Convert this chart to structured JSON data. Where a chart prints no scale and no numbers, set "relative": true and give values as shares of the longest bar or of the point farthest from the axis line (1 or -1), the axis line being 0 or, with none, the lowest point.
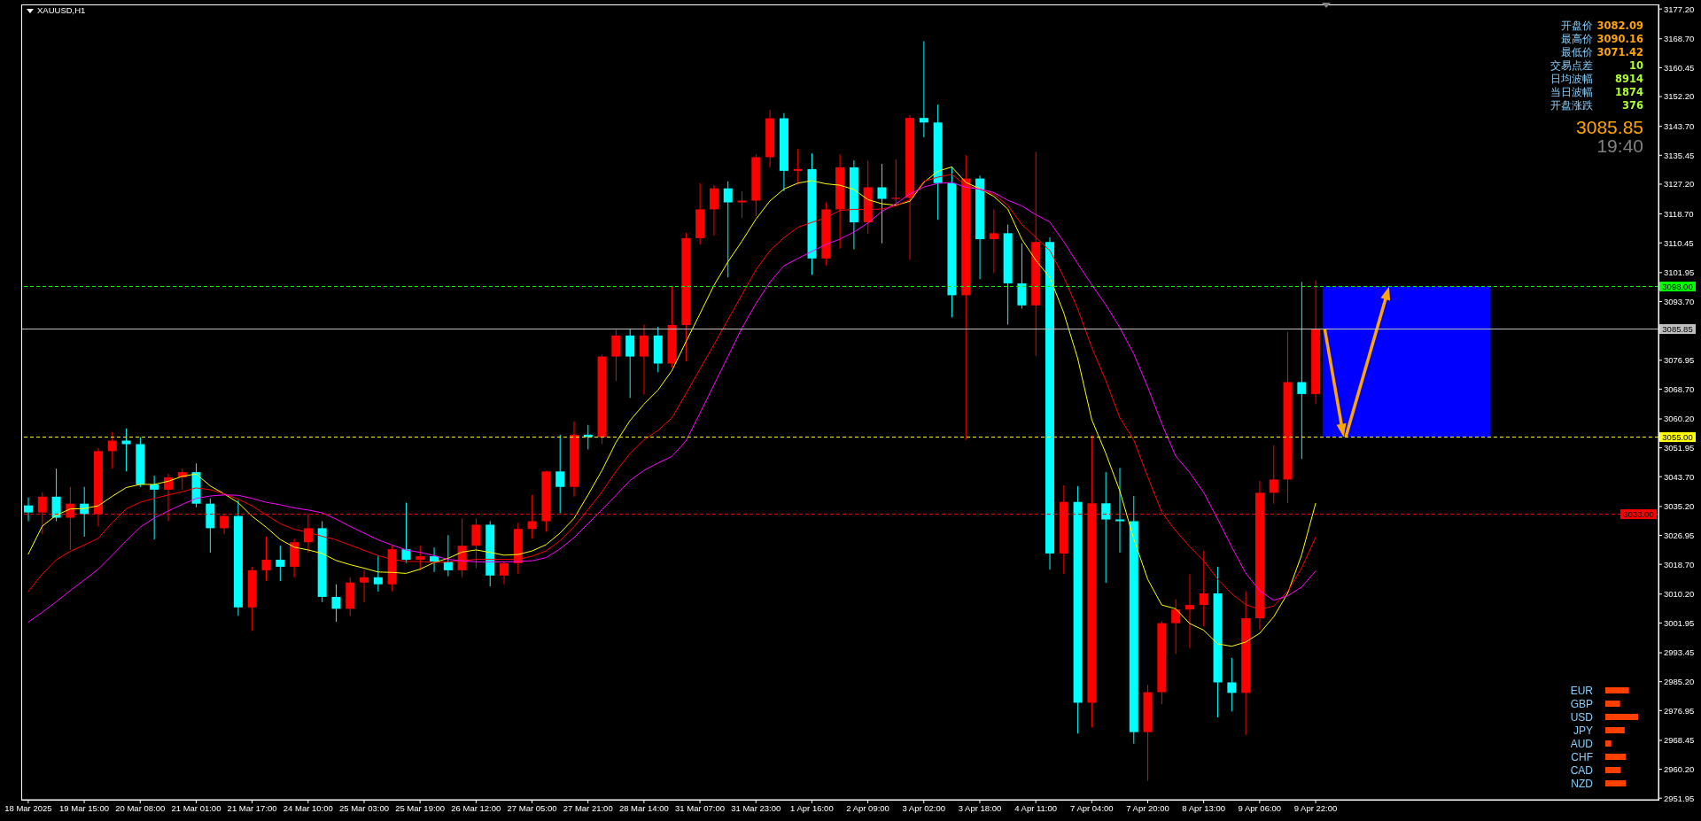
{
  "chart_data": [
    {
      "type": "candlestick",
      "title": "XAUUSD,H1",
      "categories": [
        "18 Mar 2025",
        null,
        null,
        null,
        "19 Mar 15:00",
        null,
        null,
        null,
        "20 Mar 08:00",
        null,
        null,
        null,
        "21 Mar 01:00",
        null,
        null,
        null,
        "21 Mar 17:00",
        null,
        null,
        null,
        "24 Mar 10:00",
        null,
        null,
        null,
        "25 Mar 03:00",
        null,
        null,
        null,
        "25 Mar 19:00",
        null,
        null,
        null,
        "26 Mar 12:00",
        null,
        null,
        null,
        "27 Mar 05:00",
        null,
        null,
        null,
        "27 Mar 21:00",
        null,
        null,
        null,
        "28 Mar 14:00",
        null,
        null,
        null,
        "31 Mar 07:00",
        null,
        null,
        null,
        "31 Mar 23:00",
        null,
        null,
        null,
        "1 Apr 16:00",
        null,
        null,
        null,
        "2 Apr 09:00",
        null,
        null,
        null,
        "3 Apr 02:00",
        null,
        null,
        null,
        "3 Apr 18:00",
        null,
        null,
        null,
        "4 Apr 11:00",
        null,
        null,
        null,
        "7 Apr 04:00",
        null,
        null,
        null,
        "7 Apr 20:00",
        null,
        null,
        null,
        "8 Apr 13:00",
        null,
        null,
        null,
        "9 Apr 06:00",
        null,
        null,
        null,
        "9 Apr 22:00",
        null,
        null,
        null,
        null,
        null,
        null,
        null,
        null,
        null,
        null,
        null,
        null,
        null,
        null,
        null,
        null,
        null,
        null,
        null,
        null,
        null,
        null,
        null,
        null
      ],
      "ohlc": [
        [
          3035.5,
          3037.8,
          3031,
          3033.5
        ],
        [
          3033.5,
          3039.3,
          3027.3,
          3038
        ],
        [
          3038,
          3046,
          3031,
          3032
        ],
        [
          3032,
          3040.8,
          3022.8,
          3036
        ],
        [
          3036,
          3040.8,
          3026.6,
          3033
        ],
        [
          3033,
          3051.9,
          3029.5,
          3051
        ],
        [
          3051,
          3056.5,
          3046,
          3054
        ],
        [
          3054,
          3057.5,
          3045.2,
          3053
        ],
        [
          3053,
          3055,
          3040.8,
          3041.5
        ],
        [
          3041.5,
          3044,
          3025.8,
          3040
        ],
        [
          3040,
          3044.5,
          3031,
          3043.5
        ],
        [
          3043.5,
          3046,
          3040,
          3045
        ],
        [
          3045,
          3047.5,
          3035,
          3036
        ],
        [
          3036,
          3037.5,
          3022,
          3029
        ],
        [
          3029,
          3033,
          3027.3,
          3032.5
        ],
        [
          3032.5,
          3037,
          3004,
          3006.4
        ],
        [
          3006.4,
          3018,
          2999.7,
          3017
        ],
        [
          3017,
          3026.6,
          3014,
          3020
        ],
        [
          3020,
          3024,
          3013.9,
          3018
        ],
        [
          3018,
          3026,
          3015,
          3025
        ],
        [
          3025,
          3033.3,
          3022,
          3029
        ],
        [
          3029,
          3031,
          3007.9,
          3009.4
        ],
        [
          3009.4,
          3013,
          3002.3,
          3006
        ],
        [
          3006,
          3015,
          3004,
          3013.5
        ],
        [
          3013.5,
          3017,
          3007.9,
          3015
        ],
        [
          3015,
          3021.3,
          3010.9,
          3013
        ],
        [
          3013,
          3024,
          3011,
          3023
        ],
        [
          3023,
          3036.3,
          3019.1,
          3020
        ],
        [
          3020,
          3024,
          3017,
          3021
        ],
        [
          3021,
          3023.5,
          3016.5,
          3019.5
        ],
        [
          3019.5,
          3027,
          3015.3,
          3017
        ],
        [
          3017,
          3031.8,
          3015,
          3024
        ],
        [
          3024,
          3031.8,
          3017.6,
          3030
        ],
        [
          3030,
          3031,
          3012.4,
          3015.5
        ],
        [
          3015.5,
          3019.5,
          3013,
          3019
        ],
        [
          3019,
          3030.5,
          3016,
          3028.8
        ],
        [
          3028.8,
          3038.5,
          3026,
          3031
        ],
        [
          3031,
          3045.4,
          3028,
          3045.2
        ],
        [
          3045.2,
          3055.7,
          3033.3,
          3040.8
        ],
        [
          3040.8,
          3059.5,
          3038,
          3055.7
        ],
        [
          3055.7,
          3058.5,
          3051.5,
          3055
        ],
        [
          3055,
          3078.5,
          3053,
          3078
        ],
        [
          3078,
          3085.6,
          3071,
          3084
        ],
        [
          3084,
          3086,
          3066.2,
          3078
        ],
        [
          3078,
          3087.1,
          3067.2,
          3084
        ],
        [
          3084,
          3086.5,
          3073.5,
          3076
        ],
        [
          3076,
          3098,
          3074.8,
          3087
        ],
        [
          3087,
          3113.3,
          3076.6,
          3111.8
        ],
        [
          3111.8,
          3127.5,
          3110,
          3120
        ],
        [
          3120,
          3127,
          3112.5,
          3126
        ],
        [
          3126,
          3128,
          3100.6,
          3122
        ],
        [
          3122,
          3125.2,
          3117.5,
          3122.5
        ],
        [
          3122.5,
          3135.7,
          3118,
          3134.9
        ],
        [
          3134.9,
          3148.4,
          3132,
          3146
        ],
        [
          3146,
          3147.5,
          3125.2,
          3131
        ],
        [
          3131,
          3137.2,
          3127,
          3131.5
        ],
        [
          3131.5,
          3136,
          3101.3,
          3106
        ],
        [
          3106,
          3122,
          3104,
          3120
        ],
        [
          3120,
          3135.7,
          3108.8,
          3132
        ],
        [
          3132,
          3134,
          3108.6,
          3116.3
        ],
        [
          3116.3,
          3133.9,
          3113,
          3126.3
        ],
        [
          3126.3,
          3133,
          3110.3,
          3123
        ],
        [
          3123,
          3134.3,
          3121.6,
          3123.3
        ],
        [
          3123.3,
          3147,
          3105.6,
          3146.1
        ],
        [
          3146.1,
          3168,
          3140.6,
          3144.8
        ],
        [
          3144.8,
          3149.9,
          3117,
          3127.5
        ],
        [
          3127.5,
          3132.2,
          3089.2,
          3095.5
        ],
        [
          3095.5,
          3135.5,
          3054.2,
          3128.8
        ],
        [
          3128.8,
          3129.6,
          3100.1,
          3111.5
        ],
        [
          3111.5,
          3120,
          3101.8,
          3113.2
        ],
        [
          3113.2,
          3115.7,
          3087.1,
          3098.9
        ],
        [
          3098.9,
          3110.3,
          3091.7,
          3092.6
        ],
        [
          3092.6,
          3136.4,
          3078.2,
          3110.7
        ],
        [
          3110.7,
          3112,
          3017.2,
          3021.8
        ],
        [
          3021.8,
          3041.2,
          3015.9,
          3036.5
        ],
        [
          3036.5,
          3041,
          2970.4,
          2979.2
        ],
        [
          2979.2,
          3055.5,
          2972.1,
          3036.1
        ],
        [
          3036.1,
          3045,
          3013.4,
          3031.5
        ],
        [
          3031.5,
          3046.2,
          3022,
          3031
        ],
        [
          3031,
          3038.2,
          2967.5,
          2970.8
        ],
        [
          2970.8,
          2984.3,
          2956.9,
          2982.2
        ],
        [
          2982.2,
          3002.5,
          2978.8,
          3001.9
        ],
        [
          3001.9,
          3008.7,
          2993.1,
          3005.8
        ],
        [
          3005.8,
          3015.9,
          2994.8,
          3007.1
        ],
        [
          3007.1,
          3022.6,
          3001,
          3010.4
        ],
        [
          3010.4,
          3018,
          2975,
          2985
        ],
        [
          2985,
          2992,
          2976.7,
          2982
        ],
        [
          2982,
          3011,
          2970,
          3003.3
        ],
        [
          3003.3,
          3042.5,
          3000,
          3039.1
        ],
        [
          3039.1,
          3052.6,
          3036,
          3042.9
        ],
        [
          3042.9,
          3085,
          3036.2,
          3070.7
        ],
        [
          3070.7,
          3099.3,
          3048.8,
          3067.3
        ],
        [
          3067.3,
          3099.7,
          3064.4,
          3085.85
        ],
        null,
        null,
        null,
        null,
        null,
        null,
        null,
        null,
        null,
        null,
        null,
        null,
        null,
        null,
        null,
        null,
        null,
        null,
        null,
        null,
        null,
        null,
        null,
        null
      ],
      "colors": [
        "#00ffff",
        "#ff0000",
        "#00ffff",
        "#ff0000",
        "#00ffff",
        "#ff0000",
        "#ff0000",
        "#00ffff",
        "#00ffff",
        "#00ffff",
        "#ff0000",
        "#ff0000",
        "#00ffff",
        "#00ffff",
        "#ff0000",
        "#00ffff",
        "#ff0000",
        "#ff0000",
        "#00ffff",
        "#ff0000",
        "#ff0000",
        "#00ffff",
        "#00ffff",
        "#ff0000",
        "#ff0000",
        "#00ffff",
        "#ff0000",
        "#00ffff",
        "#ff0000",
        "#00ffff",
        "#00ffff",
        "#ff0000",
        "#ff0000",
        "#00ffff",
        "#ff0000",
        "#ff0000",
        "#ff0000",
        "#ff0000",
        "#00ffff",
        "#ff0000",
        "#00ffff",
        "#ff0000",
        "#ff0000",
        "#00ffff",
        "#ff0000",
        "#00ffff",
        "#ff0000",
        "#ff0000",
        "#ff0000",
        "#ff0000",
        "#00ffff",
        "#ff0000",
        "#ff0000",
        "#ff0000",
        "#00ffff",
        "#ff0000",
        "#00ffff",
        "#ff0000",
        "#ff0000",
        "#00ffff",
        "#ff0000",
        "#00ffff",
        "#ff0000",
        "#ff0000",
        "#00ffff",
        "#00ffff",
        "#00ffff",
        "#ff0000",
        "#00ffff",
        "#ff0000",
        "#00ffff",
        "#00ffff",
        "#ff0000",
        "#00ffff",
        "#ff0000",
        "#00ffff",
        "#ff0000",
        "#00ffff",
        "#00ffff",
        "#00ffff",
        "#ff0000",
        "#ff0000",
        "#ff0000",
        "#ff0000",
        "#ff0000",
        "#00ffff",
        "#00ffff",
        "#ff0000",
        "#ff0000",
        "#ff0000",
        "#ff0000",
        "#00ffff",
        "#ff0000",
        null,
        null,
        null,
        null,
        null,
        null,
        null,
        null,
        null,
        null,
        null,
        null,
        null,
        null,
        null,
        null,
        null,
        null,
        null,
        null,
        null,
        null,
        null,
        null
      ],
      "series": [
        {
          "type": "line",
          "color": "#ffff00",
          "values": [
            3021.6,
            3029.6,
            3032.7,
            3034.5,
            3034.6,
            3035.4,
            3038.1,
            3040.6,
            3041.5,
            3041.5,
            3042.4,
            3043.8,
            3044.5,
            3041.1,
            3038.8,
            3036.3,
            3032.4,
            3029.3,
            3025.8,
            3023.6,
            3022.8,
            3021.8,
            3019.8,
            3018.6,
            3017.6,
            3016.5,
            3016.4,
            3016.1,
            3017.3,
            3019.2,
            3020.4,
            3022.2,
            3022.8,
            3022.1,
            3021.3,
            3021.5,
            3022.5,
            3024.3,
            3027.6,
            3031.8,
            3038.5,
            3045.5,
            3053.5,
            3059.7,
            3064.4,
            3068.4,
            3074,
            3082.2,
            3090.2,
            3098.3,
            3105,
            3110.9,
            3117.2,
            3122.4,
            3125.8,
            3127.5,
            3128.2,
            3127.3,
            3126.9,
            3125.7,
            3122.8,
            3121.6,
            3121.2,
            3122.3,
            3127.7,
            3130.9,
            3132.1,
            3127.7,
            3125.9,
            3123.7,
            3120.1,
            3111.5,
            3105.5,
            3100.6,
            3090.5,
            3077.4,
            3060,
            3050.4,
            3039.7,
            3026,
            3014.4,
            3007.1,
            3006,
            3001.8,
            2999.9,
            2996,
            2995.3,
            2996.5,
            2999,
            3003.7,
            3010.4,
            3021.4,
            3036.1,
            null,
            null,
            null,
            null,
            null,
            null,
            null,
            null,
            null,
            null,
            null,
            null,
            null,
            null,
            null,
            null,
            null,
            null,
            null,
            null,
            null,
            null,
            null,
            null
          ]
        },
        {
          "type": "line",
          "color": "#ff0000",
          "values": [
            3010.9,
            3015.9,
            3020,
            3022.4,
            3024.2,
            3026.1,
            3030.6,
            3034.5,
            3036.4,
            3037.5,
            3038.5,
            3039.4,
            3040.5,
            3040,
            3038.8,
            3037.3,
            3035.4,
            3032.8,
            3030.3,
            3028.7,
            3027.8,
            3026.7,
            3025.7,
            3024.2,
            3022.7,
            3021.2,
            3020.1,
            3019.5,
            3019.5,
            3019.2,
            3019.4,
            3019.7,
            3020.1,
            3020.1,
            3020.1,
            3020.1,
            3021,
            3022.5,
            3025.4,
            3029.4,
            3034.3,
            3039.4,
            3045.2,
            3050.3,
            3054.2,
            3056.9,
            3060.5,
            3067.4,
            3074.4,
            3081.4,
            3088.5,
            3095.6,
            3102.7,
            3108.2,
            3111.9,
            3114.9,
            3116.3,
            3117.6,
            3119.7,
            3120,
            3120,
            3120.1,
            3121,
            3122.8,
            3128,
            3129.2,
            3130,
            3126.9,
            3125.7,
            3124.3,
            3121.2,
            3115.7,
            3112,
            3108.3,
            3100.7,
            3091.6,
            3080.6,
            3071.2,
            3060.6,
            3054.2,
            3043.7,
            3033.6,
            3028.3,
            3023.8,
            3019.7,
            3014.5,
            3010.3,
            3007.2,
            3005.8,
            3006.8,
            3011,
            3017.6,
            3026.4,
            null,
            null,
            null,
            null,
            null,
            null,
            null,
            null,
            null,
            null,
            null,
            null,
            null,
            null,
            null,
            null,
            null,
            null,
            null,
            null,
            null,
            null,
            null,
            null
          ]
        },
        {
          "type": "line",
          "color": "#ff00ff",
          "values": [
            3002.2,
            3005,
            3008,
            3011.2,
            3014.2,
            3017.3,
            3021.3,
            3025.4,
            3029.3,
            3031.9,
            3033.9,
            3035.8,
            3037.5,
            3038.2,
            3038.5,
            3038.4,
            3037.5,
            3036.4,
            3035.7,
            3034.8,
            3034.2,
            3033.4,
            3031.6,
            3029.5,
            3027.6,
            3025.7,
            3024.2,
            3022.8,
            3022.1,
            3021.2,
            3020.1,
            3019.7,
            3019.4,
            3019.4,
            3019.4,
            3019.5,
            3019.7,
            3020.6,
            3023.1,
            3026.3,
            3030.3,
            3034.3,
            3038.4,
            3042.6,
            3045.5,
            3047.6,
            3049.5,
            3053.9,
            3061.8,
            3069.9,
            3078,
            3086.1,
            3093.1,
            3099.2,
            3103.9,
            3106,
            3108,
            3110,
            3111.5,
            3113.5,
            3116.1,
            3119.4,
            3121.6,
            3124.4,
            3126.4,
            3127.4,
            3127.7,
            3126.3,
            3125.8,
            3124.8,
            3122.6,
            3121,
            3118.5,
            3116.4,
            3110.8,
            3104.5,
            3098.5,
            3092.8,
            3086.3,
            3078.8,
            3069.3,
            3058.9,
            3049.6,
            3044.9,
            3039.2,
            3031.6,
            3023.7,
            3016.2,
            3011.2,
            3008.4,
            3009.7,
            3012.2,
            3016.8,
            null,
            null,
            null,
            null,
            null,
            null,
            null,
            null,
            null,
            null,
            null,
            null,
            null,
            null,
            null,
            null,
            null,
            null,
            null,
            null,
            null,
            null,
            null,
            null
          ]
        }
      ],
      "ylim": [
        2951.5,
        3178.5
      ],
      "yticks": [
        {
          "value": 3177.2,
          "label": "3177.20"
        },
        {
          "value": 3168.7,
          "label": "3168.70"
        },
        3160.45,
        {
          "value": 3152.2,
          "label": "3152.20"
        },
        {
          "value": 3143.7,
          "label": "3143.70"
        },
        3135.45,
        {
          "value": 3127.2,
          "label": "3127.20"
        },
        {
          "value": 3118.7,
          "label": "3118.70"
        },
        3110.45,
        3101.95,
        {
          "value": 3093.7,
          "label": "3093.70"
        },
        3076.95,
        {
          "value": 3068.7,
          "label": "3068.70"
        },
        {
          "value": 3060.2,
          "label": "3060.20"
        },
        3051.95,
        {
          "value": 3043.7,
          "label": "3043.70"
        },
        {
          "value": 3035.2,
          "label": "3035.20"
        },
        3026.95,
        {
          "value": 3018.7,
          "label": "3018.70"
        },
        {
          "value": 3010.2,
          "label": "3010.20"
        },
        3001.95,
        2993.45,
        {
          "value": 2985.2,
          "label": "2985.20"
        },
        2976.95,
        2968.45,
        {
          "value": 2960.2,
          "label": "2960.20"
        },
        2951.95
      ],
      "ref_lines": [
        {
          "axis": "y",
          "value": 3098,
          "label": "3098.00",
          "color": "#00ff00",
          "line_style": "dashed"
        },
        {
          "axis": "y",
          "value": 3085.85,
          "label": "3085.85",
          "color": "#c0c0c0",
          "line_style": "solid"
        },
        {
          "axis": "y",
          "value": 3055,
          "label": "3055.00",
          "color": "#ffff00",
          "line_style": "dashed"
        },
        {
          "axis": "y",
          "value": 3033,
          "label": "3033.00",
          "color": "#ff0000",
          "line_style": "dashed"
        }
      ],
      "bands": [
        {
          "axis": "y",
          "from": 3055,
          "to": 3098,
          "color": "#0000ff"
        }
      ],
      "annotations": [
        "开盘价",
        "3082.09",
        "最高价",
        "3090.16",
        "最低价",
        "3071.42",
        "交易点差",
        "10",
        "日均波幅",
        "8914",
        "当日波幅",
        "1874",
        "开盘涨跌",
        "376",
        "3085.85",
        "19:40"
      ]
    },
    {
      "type": "bar",
      "orientation": "horizontal",
      "relative": true,
      "categories": [
        "EUR",
        "GBP",
        "USD",
        "JPY",
        "AUD",
        "CHF",
        "CAD",
        "NZD"
      ],
      "values": [
        0.72,
        0.45,
        1,
        0.59,
        0.18,
        0.63,
        0.47,
        0.63
      ],
      "color": "#ff4000"
    }
  ]
}
